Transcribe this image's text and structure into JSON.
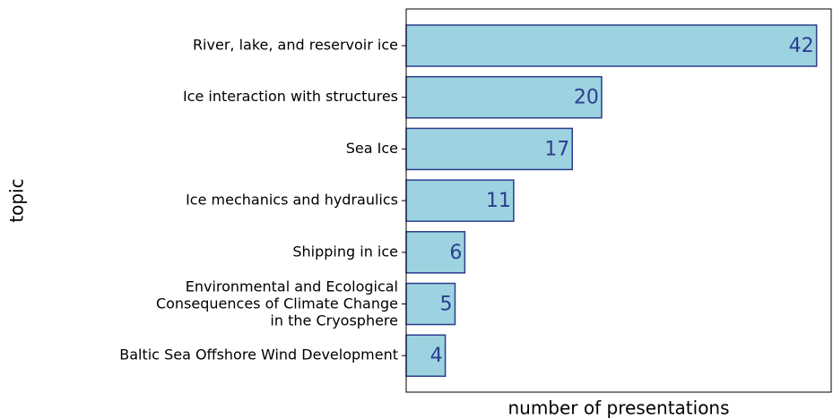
{
  "chart_data": {
    "type": "barh",
    "xlabel": "number of presentations",
    "ylabel": "topic",
    "categories": [
      "River, lake, and reservoir ice",
      "Ice interaction with structures",
      "Sea Ice",
      "Ice mechanics and hydraulics",
      "Shipping in ice",
      "Environmental and Ecological\nConsequences of Climate Change\nin the Cryosphere",
      "Baltic Sea Offshore Wind Development"
    ],
    "values": [
      42,
      20,
      17,
      11,
      6,
      5,
      4
    ],
    "color": "#9dd3e0",
    "edgecolor": "#2b3d8f",
    "xlim": [
      0,
      43.5
    ]
  }
}
